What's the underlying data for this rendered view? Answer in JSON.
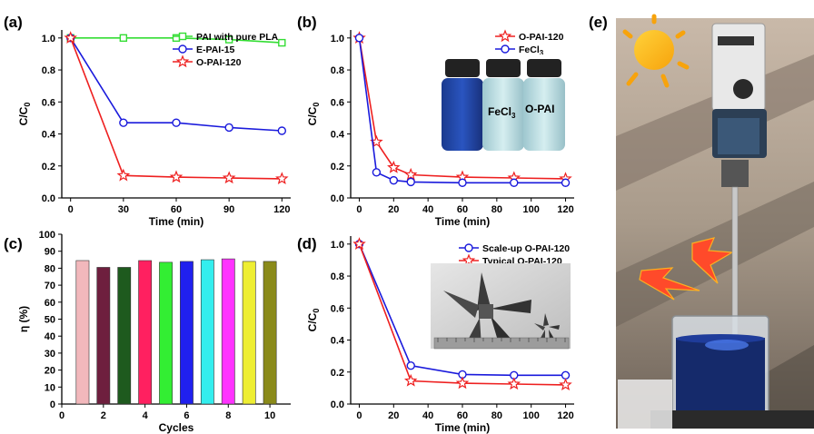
{
  "panels": {
    "a": "(a)",
    "b": "(b)",
    "c": "(c)",
    "d": "(d)",
    "e": "(e)"
  },
  "inset_b": {
    "label1": "FeCl",
    "label1_sub": "3",
    "label2": "O-PAI"
  },
  "chart_data": [
    {
      "id": "a",
      "type": "line",
      "xlabel": "Time (min)",
      "ylabel": "C/C",
      "ylabel_sub": "0",
      "xlim": [
        -5,
        125
      ],
      "ylim": [
        0,
        1.05
      ],
      "xticks": [
        0,
        30,
        60,
        90,
        120
      ],
      "yticks": [
        0.0,
        0.2,
        0.4,
        0.6,
        0.8,
        1.0
      ],
      "legend_position": "right",
      "series": [
        {
          "name": "PAI with pure PLA",
          "color": "#33dd33",
          "marker": "square",
          "x": [
            0,
            30,
            60,
            90,
            120
          ],
          "y": [
            1.0,
            1.0,
            1.0,
            0.99,
            0.97
          ]
        },
        {
          "name": "E-PAI-15",
          "color": "#1a1adc",
          "marker": "circle",
          "x": [
            0,
            30,
            60,
            90,
            120
          ],
          "y": [
            1.0,
            0.47,
            0.47,
            0.44,
            0.42
          ]
        },
        {
          "name": "O-PAI-120",
          "color": "#ee2020",
          "marker": "star",
          "x": [
            0,
            30,
            60,
            90,
            120
          ],
          "y": [
            1.0,
            0.14,
            0.13,
            0.125,
            0.12
          ]
        }
      ]
    },
    {
      "id": "b",
      "type": "line",
      "xlabel": "Time (min)",
      "ylabel": "C/C",
      "ylabel_sub": "0",
      "xlim": [
        -5,
        125
      ],
      "ylim": [
        0,
        1.05
      ],
      "xticks": [
        0,
        20,
        40,
        60,
        80,
        100,
        120
      ],
      "yticks": [
        0.0,
        0.2,
        0.4,
        0.6,
        0.8,
        1.0
      ],
      "legend_position": "top-right",
      "series": [
        {
          "name": "O-PAI-120",
          "name_sub": "",
          "color": "#ee2020",
          "marker": "star",
          "x": [
            0,
            10,
            20,
            30,
            60,
            90,
            120
          ],
          "y": [
            1.0,
            0.35,
            0.19,
            0.145,
            0.13,
            0.125,
            0.12
          ]
        },
        {
          "name": "FeCl",
          "name_sub": "3",
          "color": "#1a1adc",
          "marker": "circle",
          "x": [
            0,
            10,
            20,
            30,
            60,
            90,
            120
          ],
          "y": [
            1.0,
            0.16,
            0.11,
            0.1,
            0.095,
            0.095,
            0.095
          ]
        }
      ]
    },
    {
      "id": "c",
      "type": "bar",
      "xlabel": "Cycles",
      "ylabel": "η (%)",
      "xlim": [
        0,
        11
      ],
      "ylim": [
        0,
        100
      ],
      "xticks": [
        0,
        2,
        4,
        6,
        8,
        10
      ],
      "yticks": [
        0,
        10,
        20,
        30,
        40,
        50,
        60,
        70,
        80,
        90,
        100
      ],
      "categories": [
        1,
        2,
        3,
        4,
        5,
        6,
        7,
        8,
        9,
        10
      ],
      "values": [
        84.5,
        80.5,
        80.5,
        84.5,
        83.5,
        84,
        85,
        85.5,
        84,
        84
      ],
      "colors": [
        "#f2b8bc",
        "#6e1f3e",
        "#1e5a1e",
        "#ff2060",
        "#33ee33",
        "#2020ee",
        "#33eeee",
        "#ff33ff",
        "#eeee33",
        "#8a8a1a"
      ]
    },
    {
      "id": "d",
      "type": "line",
      "xlabel": "Time (min)",
      "ylabel": "C/C",
      "ylabel_sub": "0",
      "xlim": [
        -5,
        125
      ],
      "ylim": [
        0,
        1.05
      ],
      "xticks": [
        0,
        20,
        40,
        60,
        80,
        100,
        120
      ],
      "yticks": [
        0.0,
        0.2,
        0.4,
        0.6,
        0.8,
        1.0
      ],
      "legend_position": "top-right",
      "series": [
        {
          "name": "Scale-up O-PAI-120",
          "color": "#1a1adc",
          "marker": "circle",
          "x": [
            0,
            30,
            60,
            90,
            120
          ],
          "y": [
            1.0,
            0.24,
            0.185,
            0.18,
            0.18
          ]
        },
        {
          "name": "Typical O-PAI-120",
          "color": "#ee2020",
          "marker": "star",
          "x": [
            0,
            30,
            60,
            90,
            120
          ],
          "y": [
            1.0,
            0.145,
            0.13,
            0.125,
            0.12
          ]
        }
      ]
    }
  ]
}
